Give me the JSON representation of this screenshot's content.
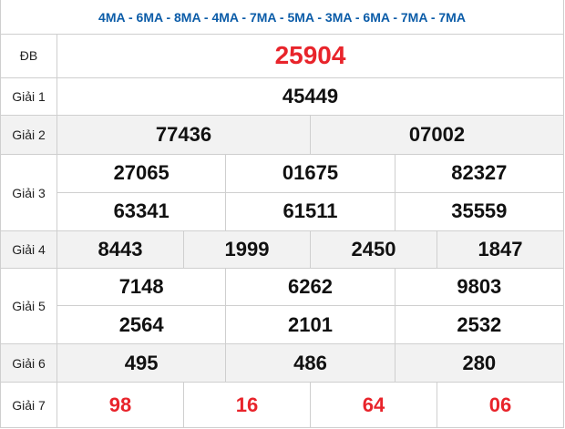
{
  "header": {
    "title": "4MA - 6MA - 8MA - 4MA - 7MA - 5MA - 3MA - 6MA - 7MA - 7MA"
  },
  "colors": {
    "header": "#0b5ca8",
    "highlight": "#e8242b",
    "stripe": "#f2f2f2"
  },
  "prizes": [
    {
      "label": "ĐB",
      "lines": [
        [
          "25904"
        ]
      ]
    },
    {
      "label": "Giải 1",
      "lines": [
        [
          "45449"
        ]
      ]
    },
    {
      "label": "Giải 2",
      "lines": [
        [
          "77436",
          "07002"
        ]
      ]
    },
    {
      "label": "Giải 3",
      "lines": [
        [
          "27065",
          "01675",
          "82327"
        ],
        [
          "63341",
          "61511",
          "35559"
        ]
      ]
    },
    {
      "label": "Giải 4",
      "lines": [
        [
          "8443",
          "1999",
          "2450",
          "1847"
        ]
      ]
    },
    {
      "label": "Giải 5",
      "lines": [
        [
          "7148",
          "6262",
          "9803"
        ],
        [
          "2564",
          "2101",
          "2532"
        ]
      ]
    },
    {
      "label": "Giải 6",
      "lines": [
        [
          "495",
          "486",
          "280"
        ]
      ]
    },
    {
      "label": "Giải 7",
      "lines": [
        [
          "98",
          "16",
          "64",
          "06"
        ]
      ]
    }
  ]
}
